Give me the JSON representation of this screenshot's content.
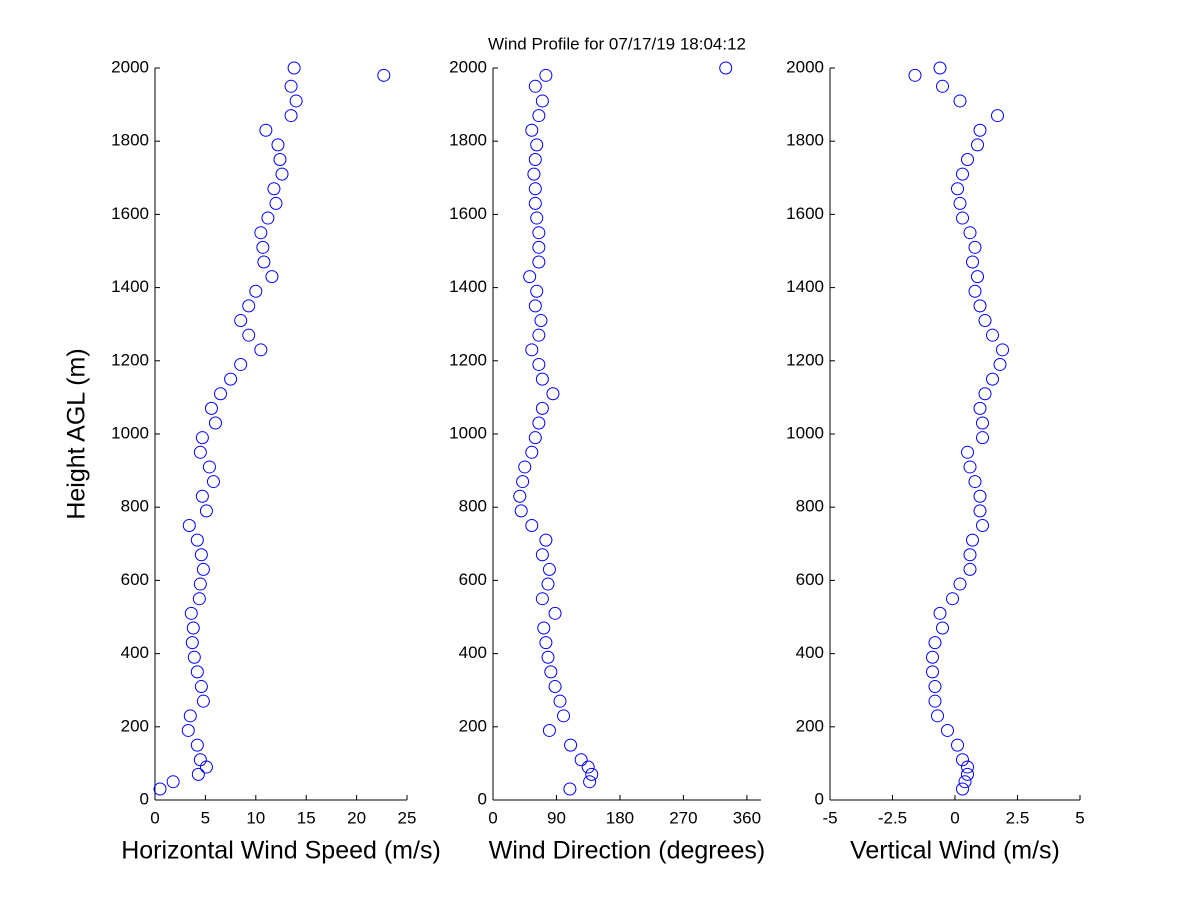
{
  "title": "Wind Profile for  07/17/19 18:04:12",
  "chart_data": [
    {
      "type": "scatter",
      "xlabel": "Horizontal Wind Speed (m/s)",
      "ylabel": "Height AGL (m)",
      "color": "#0000ff",
      "xlim": [
        0,
        25
      ],
      "xticks": [
        0,
        5,
        10,
        15,
        20,
        25
      ],
      "ylim": [
        0,
        2000
      ],
      "yticks": [
        0,
        200,
        400,
        600,
        800,
        1000,
        1200,
        1400,
        1600,
        1800,
        2000
      ],
      "x": [
        0.5,
        1.8,
        4.3,
        5.1,
        4.5,
        4.2,
        3.3,
        3.5,
        4.8,
        4.6,
        4.2,
        3.9,
        3.7,
        3.8,
        3.6,
        4.4,
        4.5,
        4.8,
        4.6,
        4.2,
        3.4,
        5.1,
        4.7,
        5.8,
        5.4,
        4.5,
        4.7,
        6.0,
        5.6,
        6.5,
        7.5,
        8.5,
        10.5,
        9.3,
        8.5,
        9.3,
        10.0,
        11.6,
        10.8,
        10.7,
        10.5,
        11.2,
        12.0,
        11.8,
        12.6,
        12.4,
        12.2,
        11.0,
        13.5,
        14.0,
        13.5,
        22.7,
        13.8
      ],
      "y": [
        30,
        50,
        70,
        90,
        110,
        150,
        190,
        230,
        270,
        310,
        350,
        390,
        430,
        470,
        510,
        550,
        590,
        630,
        670,
        710,
        750,
        790,
        830,
        870,
        910,
        950,
        990,
        1030,
        1070,
        1110,
        1150,
        1190,
        1230,
        1270,
        1310,
        1350,
        1390,
        1430,
        1470,
        1510,
        1550,
        1590,
        1630,
        1670,
        1710,
        1750,
        1790,
        1830,
        1870,
        1910,
        1950,
        1980,
        2000
      ]
    },
    {
      "type": "scatter",
      "xlabel": "Wind Direction (degrees)",
      "color": "#0000ff",
      "xlim": [
        0,
        380
      ],
      "xticks": [
        0,
        90,
        180,
        270,
        360
      ],
      "ylim": [
        0,
        2000
      ],
      "yticks": [
        0,
        200,
        400,
        600,
        800,
        1000,
        1200,
        1400,
        1600,
        1800,
        2000
      ],
      "x": [
        109,
        137,
        140,
        135,
        125,
        110,
        80,
        100,
        95,
        88,
        82,
        78,
        75,
        72,
        88,
        70,
        78,
        80,
        70,
        75,
        55,
        40,
        38,
        42,
        45,
        55,
        60,
        65,
        70,
        85,
        70,
        65,
        55,
        65,
        68,
        60,
        62,
        52,
        65,
        65,
        65,
        62,
        60,
        60,
        58,
        60,
        62,
        55,
        65,
        70,
        60,
        75,
        330
      ],
      "y": [
        30,
        50,
        70,
        90,
        110,
        150,
        190,
        230,
        270,
        310,
        350,
        390,
        430,
        470,
        510,
        550,
        590,
        630,
        670,
        710,
        750,
        790,
        830,
        870,
        910,
        950,
        990,
        1030,
        1070,
        1110,
        1150,
        1190,
        1230,
        1270,
        1310,
        1350,
        1390,
        1430,
        1470,
        1510,
        1550,
        1590,
        1630,
        1670,
        1710,
        1750,
        1790,
        1830,
        1870,
        1910,
        1950,
        1980,
        2000
      ]
    },
    {
      "type": "scatter",
      "xlabel": "Vertical Wind (m/s)",
      "color": "#0000ff",
      "xlim": [
        -5,
        5
      ],
      "xticks": [
        -5,
        -2.5,
        0,
        2.5,
        5
      ],
      "ylim": [
        0,
        2000
      ],
      "yticks": [
        0,
        200,
        400,
        600,
        800,
        1000,
        1200,
        1400,
        1600,
        1800,
        2000
      ],
      "x": [
        0.3,
        0.4,
        0.5,
        0.5,
        0.3,
        0.1,
        -0.3,
        -0.7,
        -0.8,
        -0.8,
        -0.9,
        -0.9,
        -0.8,
        -0.5,
        -0.6,
        -0.1,
        0.2,
        0.6,
        0.6,
        0.7,
        1.1,
        1.0,
        1.0,
        0.8,
        0.6,
        0.5,
        1.1,
        1.1,
        1.0,
        1.2,
        1.5,
        1.8,
        1.9,
        1.5,
        1.2,
        1.0,
        0.8,
        0.9,
        0.7,
        0.8,
        0.6,
        0.3,
        0.2,
        0.1,
        0.3,
        0.5,
        0.9,
        1.0,
        1.7,
        0.2,
        -0.5,
        -1.6,
        -0.6
      ],
      "y": [
        30,
        50,
        70,
        90,
        110,
        150,
        190,
        230,
        270,
        310,
        350,
        390,
        430,
        470,
        510,
        550,
        590,
        630,
        670,
        710,
        750,
        790,
        830,
        870,
        910,
        950,
        990,
        1030,
        1070,
        1110,
        1150,
        1190,
        1230,
        1270,
        1310,
        1350,
        1390,
        1430,
        1470,
        1510,
        1550,
        1590,
        1630,
        1670,
        1710,
        1750,
        1790,
        1830,
        1870,
        1910,
        1950,
        1980,
        2000
      ]
    }
  ]
}
